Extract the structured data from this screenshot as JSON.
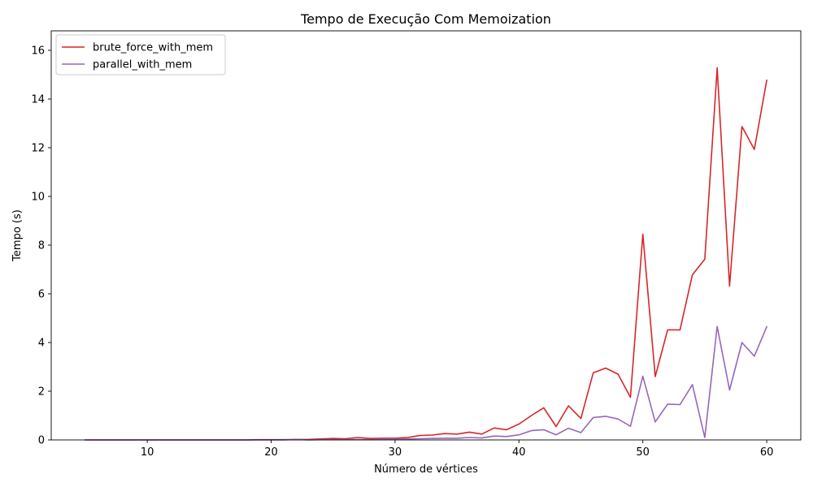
{
  "chart_data": {
    "type": "line",
    "title": "Tempo de Execução Com Memoization",
    "xlabel": "Número de vértices",
    "ylabel": "Tempo (s)",
    "xlim": [
      2.25,
      62.75
    ],
    "ylim": [
      0,
      16.8
    ],
    "xticks": [
      10,
      20,
      30,
      40,
      50,
      60
    ],
    "yticks": [
      0,
      2,
      4,
      6,
      8,
      10,
      12,
      14,
      16
    ],
    "grid": false,
    "legend_position": "top-left",
    "x": [
      5,
      6,
      7,
      8,
      9,
      10,
      11,
      12,
      13,
      14,
      15,
      16,
      17,
      18,
      19,
      20,
      21,
      22,
      23,
      24,
      25,
      26,
      27,
      28,
      29,
      30,
      31,
      32,
      33,
      34,
      35,
      36,
      37,
      38,
      39,
      40,
      41,
      42,
      43,
      44,
      45,
      46,
      47,
      48,
      49,
      50,
      51,
      52,
      53,
      54,
      55,
      56,
      57,
      58,
      59,
      60
    ],
    "series": [
      {
        "name": "brute_force_with_mem",
        "color": "#d62728",
        "values": [
          0,
          0,
          0,
          0,
          0,
          0,
          0,
          0,
          0,
          0,
          0,
          0,
          0,
          0,
          0.01,
          0.01,
          0.01,
          0.02,
          0.02,
          0.04,
          0.06,
          0.05,
          0.1,
          0.06,
          0.07,
          0.07,
          0.1,
          0.18,
          0.2,
          0.26,
          0.24,
          0.32,
          0.24,
          0.49,
          0.42,
          0.65,
          1.0,
          1.32,
          0.55,
          1.4,
          0.88,
          2.76,
          2.95,
          2.7,
          1.75,
          8.45,
          2.6,
          4.52,
          4.52,
          6.78,
          7.42,
          15.28,
          6.32,
          12.87,
          11.93,
          14.77
        ]
      },
      {
        "name": "parallel_with_mem",
        "color": "#9467bd",
        "values": [
          0,
          0,
          0,
          0,
          0,
          0,
          0,
          0,
          0,
          0,
          0,
          0,
          0,
          0,
          0,
          0,
          0,
          0.02,
          0,
          0.01,
          0.01,
          0.01,
          0.02,
          0.01,
          0.03,
          0.03,
          0.04,
          0.05,
          0.06,
          0.07,
          0.07,
          0.1,
          0.08,
          0.16,
          0.14,
          0.21,
          0.38,
          0.42,
          0.21,
          0.48,
          0.3,
          0.92,
          0.97,
          0.86,
          0.56,
          2.62,
          0.74,
          1.47,
          1.45,
          2.27,
          0.1,
          4.66,
          2.05,
          4.0,
          3.44,
          4.65
        ]
      }
    ]
  }
}
